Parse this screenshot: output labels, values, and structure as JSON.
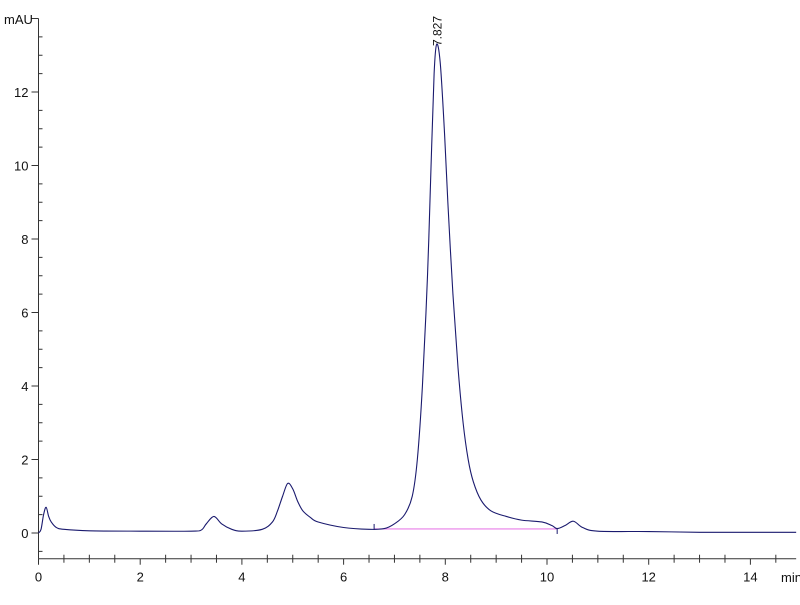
{
  "chart_data": {
    "type": "line",
    "title": "",
    "xlabel": "min",
    "ylabel": "mAU",
    "xlim": [
      0,
      14.9
    ],
    "ylim": [
      -0.7,
      14
    ],
    "x_ticks": [
      "0",
      "2",
      "4",
      "6",
      "8",
      "10",
      "12",
      "14"
    ],
    "y_ticks": [
      "0",
      "2",
      "4",
      "6",
      "8",
      "10",
      "12"
    ],
    "grid": false,
    "colors": {
      "trace": "#1a1a6e",
      "baseline": "#e87ee8",
      "axis": "#333333"
    },
    "series": [
      {
        "x": [
          0,
          0.05,
          0.1,
          0.15,
          0.2,
          0.25,
          0.35,
          0.5,
          1,
          2,
          3,
          3.2,
          3.3,
          3.45,
          3.6,
          3.8,
          4,
          4.4,
          4.6,
          4.7,
          4.8,
          4.9,
          5.0,
          5.1,
          5.2,
          5.35,
          5.5,
          6,
          6.5,
          6.8,
          7.0,
          7.2,
          7.35,
          7.45,
          7.55,
          7.65,
          7.72,
          7.78,
          7.83,
          7.9,
          7.98,
          8.05,
          8.15,
          8.25,
          8.35,
          8.45,
          8.55,
          8.7,
          8.9,
          9.2,
          9.5,
          9.9,
          10.1,
          10.2,
          10.35,
          10.52,
          10.7,
          11,
          12,
          13,
          14,
          14.9
        ],
        "y": [
          0,
          0.1,
          0.5,
          0.7,
          0.45,
          0.3,
          0.15,
          0.1,
          0.06,
          0.05,
          0.05,
          0.08,
          0.25,
          0.45,
          0.25,
          0.1,
          0.05,
          0.1,
          0.3,
          0.6,
          1.0,
          1.35,
          1.2,
          0.85,
          0.6,
          0.42,
          0.3,
          0.15,
          0.1,
          0.12,
          0.25,
          0.5,
          1.0,
          2.0,
          4.0,
          7.0,
          10.0,
          12.5,
          13.3,
          12.8,
          11.0,
          9.0,
          6.5,
          4.5,
          3.0,
          2.0,
          1.4,
          0.9,
          0.6,
          0.45,
          0.35,
          0.3,
          0.2,
          0.12,
          0.2,
          0.32,
          0.15,
          0.05,
          0.04,
          0.02,
          0.02,
          0.02
        ]
      }
    ],
    "baseline": {
      "x": [
        6.6,
        10.2
      ],
      "y": [
        0.11,
        0.11
      ]
    },
    "annotations": [
      {
        "label": "7.827",
        "x": 7.827,
        "y": 13.3
      }
    ]
  }
}
